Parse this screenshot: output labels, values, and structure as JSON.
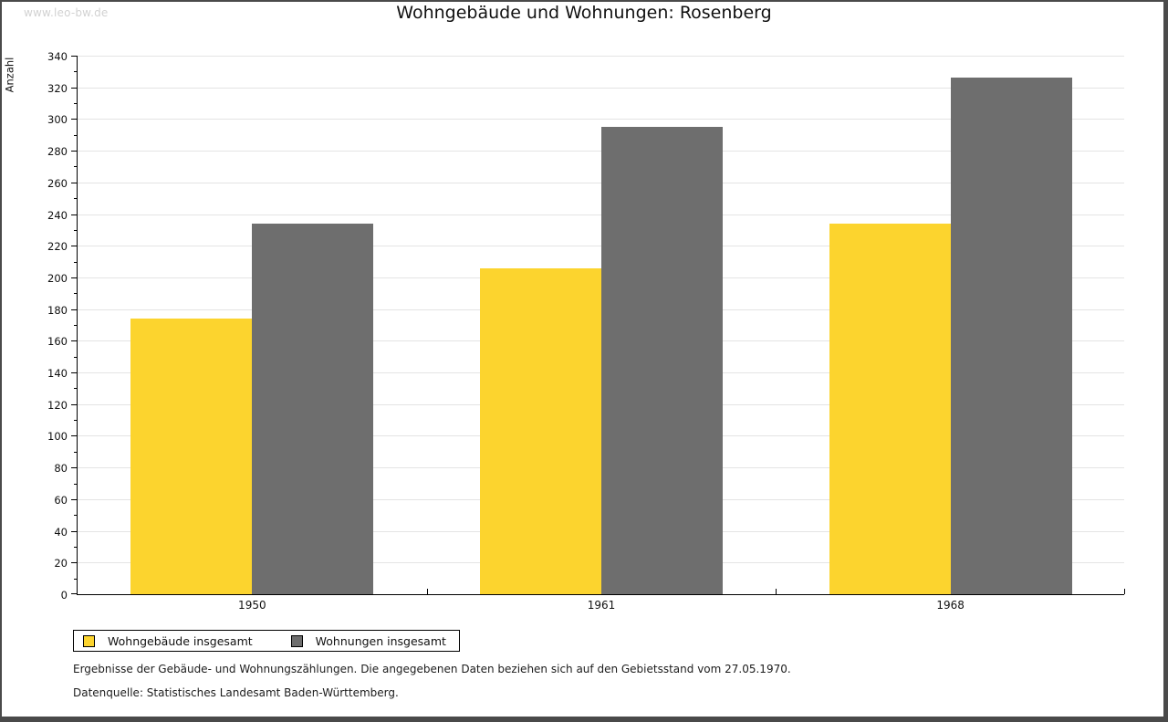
{
  "watermark": "www.leo-bw.de",
  "title": "Wohngebäude und Wohnungen: Rosenberg",
  "chart_data": {
    "type": "bar",
    "title": "Wohngebäude und Wohnungen: Rosenberg",
    "categories": [
      "1950",
      "1961",
      "1968"
    ],
    "series": [
      {
        "name": "Wohngebäude insgesamt",
        "color": "#fcd42e",
        "values": [
          174,
          206,
          234
        ]
      },
      {
        "name": "Wohnungen insgesamt",
        "color": "#6e6e6e",
        "values": [
          234,
          295,
          326
        ]
      }
    ],
    "xlabel": "",
    "ylabel": "Anzahl",
    "ylim": [
      0,
      340
    ],
    "ytick_step": 20,
    "yminor_step": 10,
    "grid": true,
    "legend_position": "bottom-left"
  },
  "footer": {
    "line1": "Ergebnisse der Gebäude- und Wohnungszählungen. Die angegebenen Daten beziehen sich auf den Gebietsstand vom 27.05.1970.",
    "line2": "Datenquelle: Statistisches Landesamt Baden-Württemberg."
  }
}
